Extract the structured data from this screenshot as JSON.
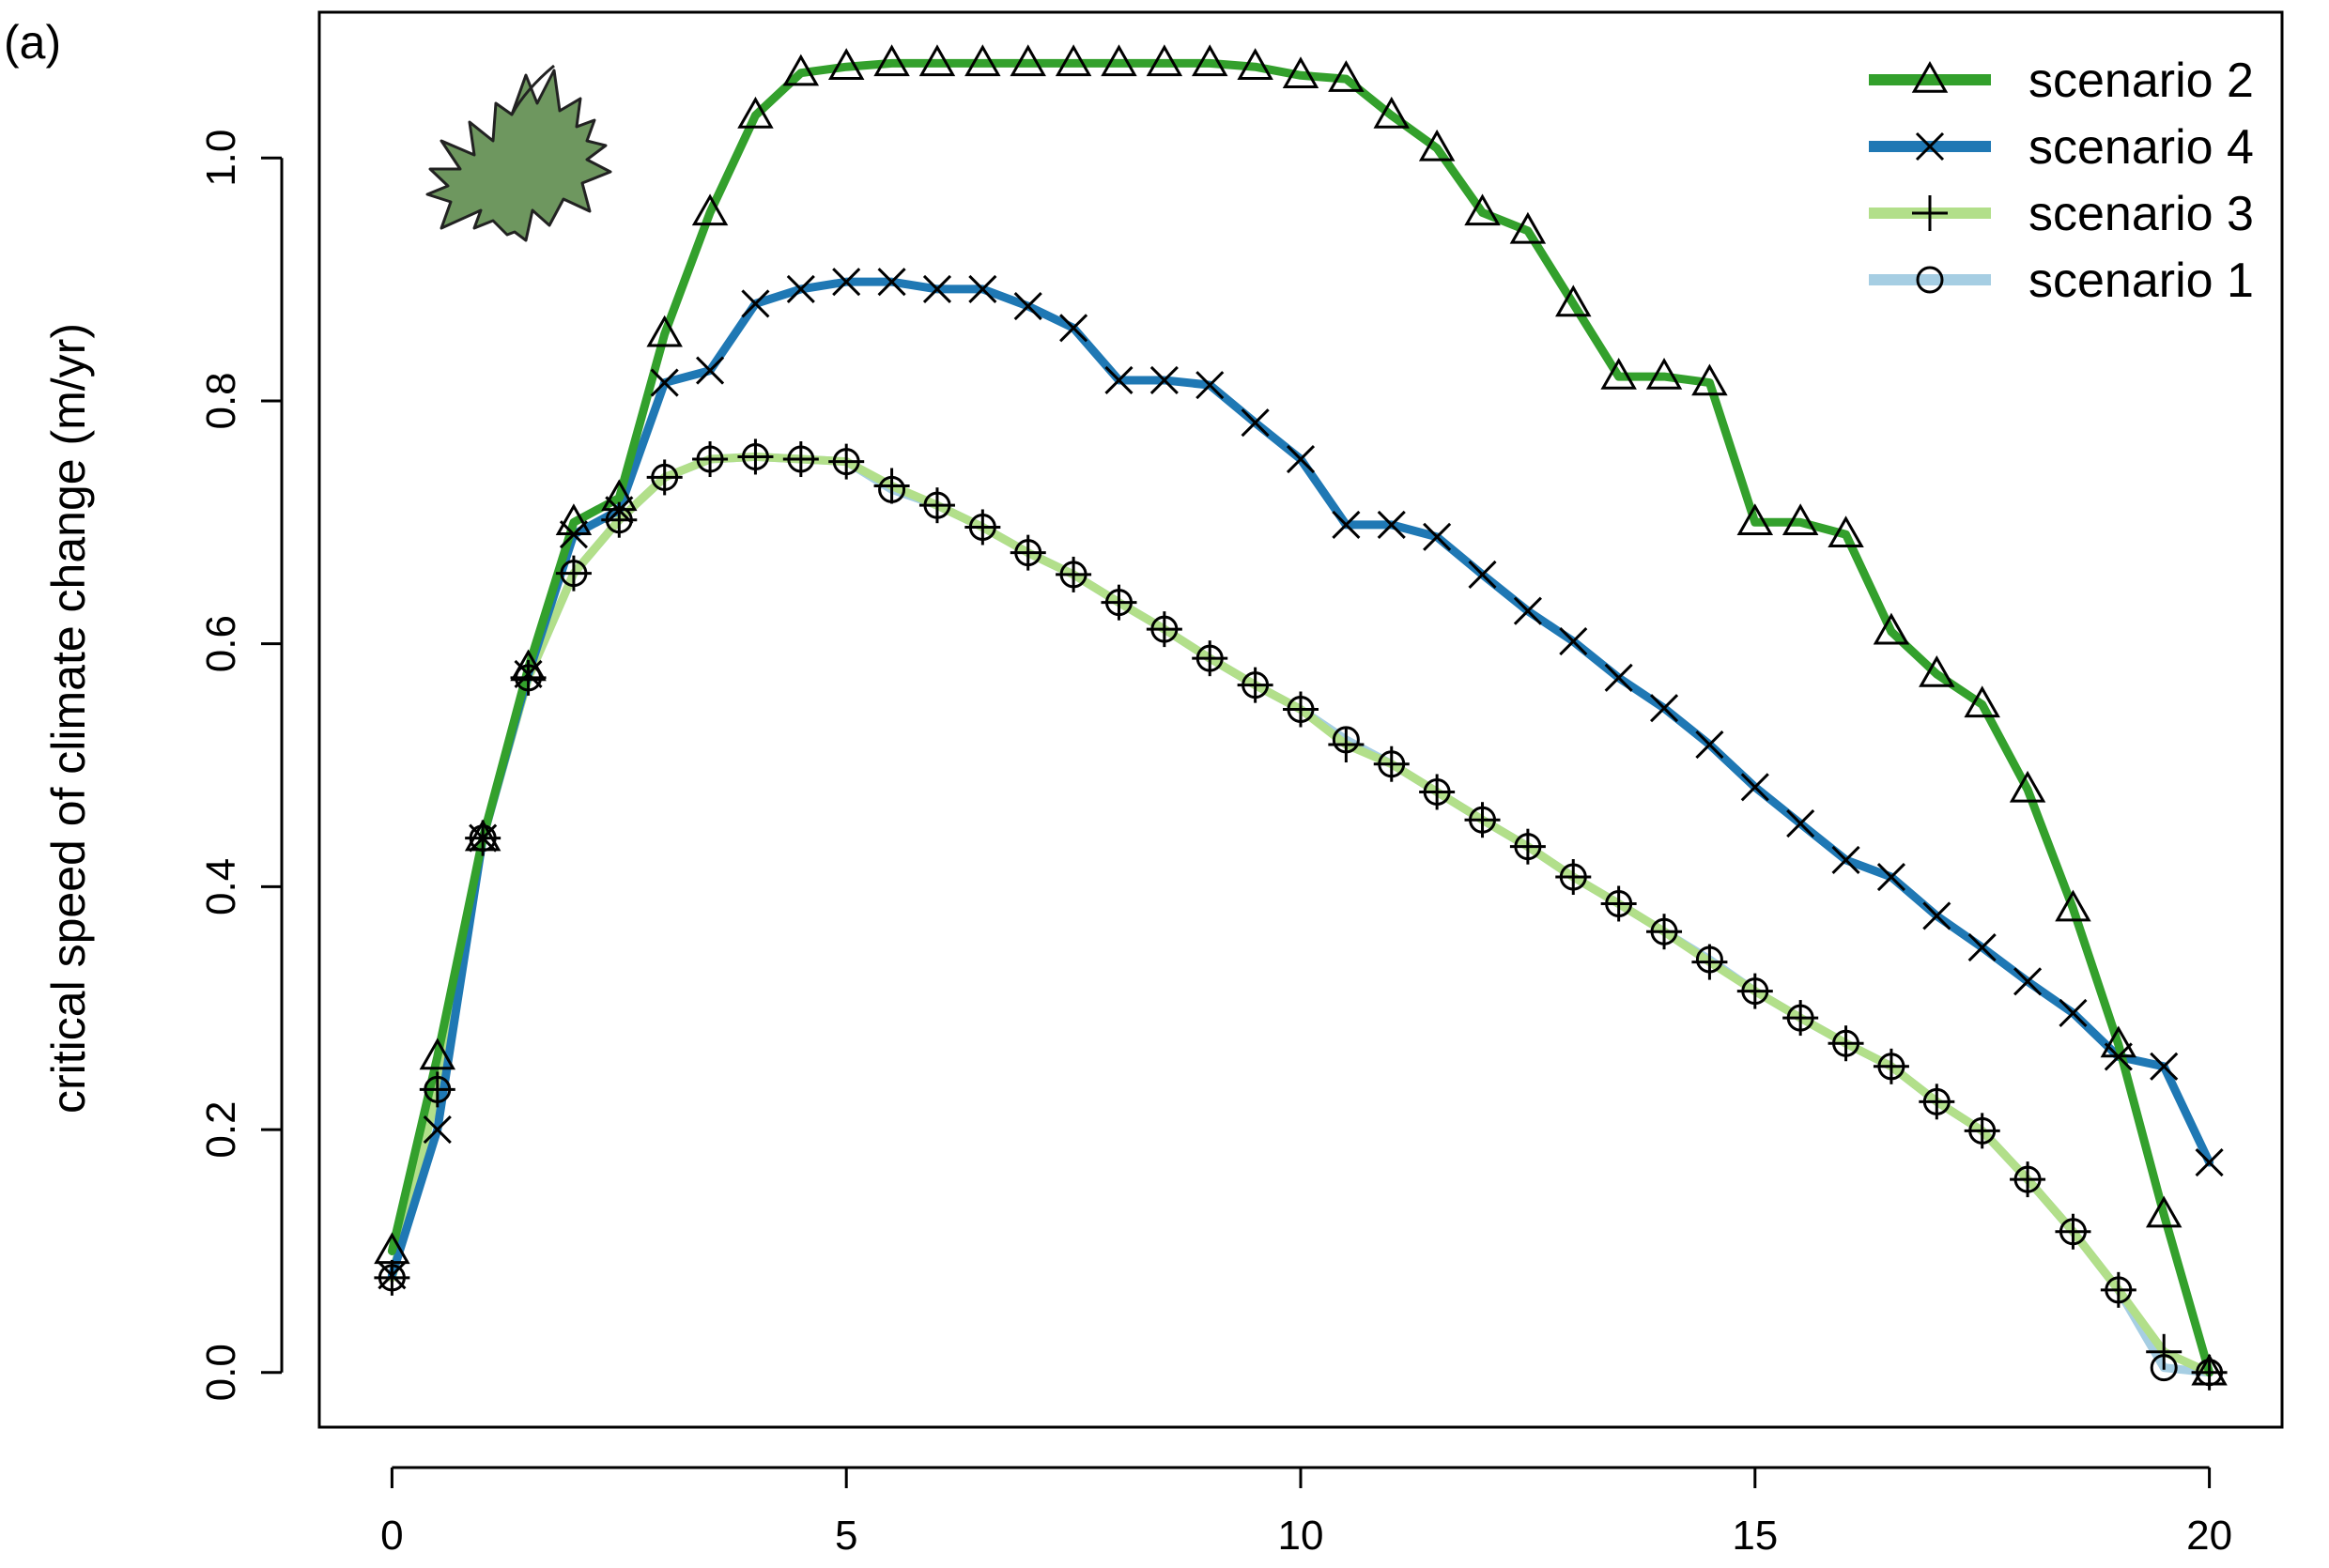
{
  "chart_data": {
    "type": "line",
    "panel_label": "(a)",
    "title": "",
    "xlabel": "",
    "ylabel": "critical speed of climate change (m/yr)",
    "xlim": [
      -0.8,
      20.8
    ],
    "ylim": [
      -0.045,
      1.12
    ],
    "x_ticks": [
      0,
      5,
      10,
      15,
      20
    ],
    "x_tick_labels": [
      "0",
      "5",
      "10",
      "15",
      "20"
    ],
    "y_ticks": [
      0.0,
      0.2,
      0.4,
      0.6,
      0.8,
      1.0
    ],
    "y_tick_labels": [
      "0.0",
      "0.2",
      "0.4",
      "0.6",
      "0.8",
      "1.0"
    ],
    "grid": false,
    "legend_position": "top-right",
    "x": [
      0,
      0.5,
      1,
      1.5,
      2,
      2.5,
      3,
      3.5,
      4,
      4.5,
      5,
      5.5,
      6,
      6.5,
      7,
      7.5,
      8,
      8.5,
      9,
      9.5,
      10,
      10.5,
      11,
      11.5,
      12,
      12.5,
      13,
      13.5,
      14,
      14.5,
      15,
      15.5,
      16,
      16.5,
      17,
      17.5,
      18,
      18.5,
      19,
      19.5,
      20
    ],
    "series": [
      {
        "name": "scenario 2",
        "color": "#33a02c",
        "line_width": 9,
        "marker": "triangle",
        "values": [
          0.1,
          0.26,
          0.44,
          0.58,
          0.7,
          0.72,
          0.855,
          0.955,
          1.035,
          1.07,
          1.075,
          1.078,
          1.078,
          1.078,
          1.078,
          1.078,
          1.078,
          1.078,
          1.078,
          1.075,
          1.068,
          1.065,
          1.035,
          1.008,
          0.955,
          0.94,
          0.88,
          0.82,
          0.82,
          0.815,
          0.7,
          0.7,
          0.69,
          0.61,
          0.575,
          0.55,
          0.48,
          0.382,
          0.27,
          0.13,
          0.0
        ]
      },
      {
        "name": "scenario 4",
        "color": "#1f78b4",
        "line_width": 9,
        "marker": "cross",
        "values": [
          0.08,
          0.2,
          0.44,
          0.575,
          0.69,
          0.71,
          0.815,
          0.825,
          0.88,
          0.892,
          0.898,
          0.898,
          0.892,
          0.892,
          0.878,
          0.86,
          0.817,
          0.817,
          0.813,
          0.782,
          0.752,
          0.698,
          0.698,
          0.688,
          0.657,
          0.627,
          0.602,
          0.572,
          0.547,
          0.517,
          0.482,
          0.452,
          0.422,
          0.408,
          0.376,
          0.35,
          0.322,
          0.296,
          0.26,
          0.252,
          0.173
        ]
      },
      {
        "name": "scenario 3",
        "color": "#b2df8a",
        "line_width": 9,
        "marker": "plus",
        "values": [
          0.078,
          0.233,
          0.44,
          0.572,
          0.658,
          0.702,
          0.737,
          0.752,
          0.754,
          0.752,
          0.75,
          0.73,
          0.714,
          0.696,
          0.675,
          0.657,
          0.634,
          0.612,
          0.588,
          0.566,
          0.546,
          0.517,
          0.501,
          0.478,
          0.455,
          0.433,
          0.408,
          0.386,
          0.363,
          0.338,
          0.314,
          0.292,
          0.271,
          0.252,
          0.223,
          0.199,
          0.159,
          0.116,
          0.068,
          0.017,
          0.0
        ]
      },
      {
        "name": "scenario 1",
        "color": "#a6cee3",
        "line_width": 9,
        "marker": "circle",
        "values": [
          0.078,
          0.233,
          0.44,
          0.572,
          0.658,
          0.702,
          0.737,
          0.752,
          0.754,
          0.752,
          0.75,
          0.727,
          0.714,
          0.696,
          0.675,
          0.657,
          0.634,
          0.612,
          0.588,
          0.566,
          0.546,
          0.521,
          0.501,
          0.478,
          0.455,
          0.433,
          0.408,
          0.386,
          0.363,
          0.34,
          0.314,
          0.292,
          0.271,
          0.252,
          0.223,
          0.199,
          0.159,
          0.116,
          0.068,
          0.004,
          0.0
        ]
      }
    ],
    "legend_order": [
      "scenario 2",
      "scenario 4",
      "scenario 3",
      "scenario 1"
    ],
    "inset_icon": {
      "name": "maple-leaf-icon",
      "color": "#6e975f"
    }
  }
}
